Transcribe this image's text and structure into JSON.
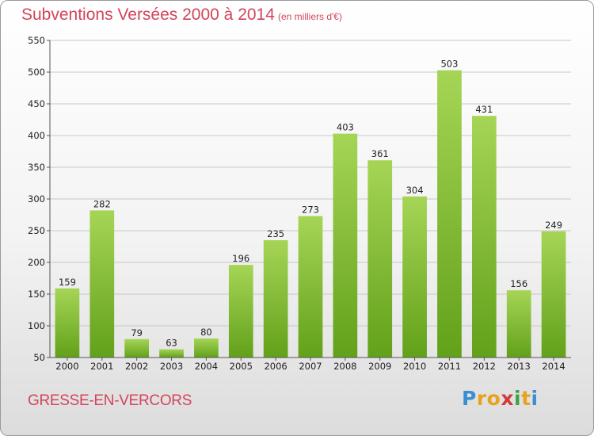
{
  "chart_data": {
    "type": "bar",
    "title": "Subventions Versées 2000 à 2014",
    "subtitle": "(en milliers d'€)",
    "categories": [
      "2000",
      "2001",
      "2002",
      "2003",
      "2004",
      "2005",
      "2006",
      "2007",
      "2008",
      "2009",
      "2010",
      "2011",
      "2012",
      "2013",
      "2014"
    ],
    "values": [
      159,
      282,
      79,
      63,
      80,
      196,
      235,
      273,
      403,
      361,
      304,
      503,
      431,
      156,
      249
    ],
    "ylim": [
      50,
      550
    ],
    "yticks": [
      50,
      100,
      150,
      200,
      250,
      300,
      350,
      400,
      450,
      500,
      550
    ],
    "xlabel": "",
    "ylabel": "",
    "grid": true,
    "bar_color": "#7cb82f"
  },
  "footer": {
    "commune": "GRESSE-EN-VERCORS",
    "logo_letters": [
      "P",
      "r",
      "o",
      "x",
      "i",
      "t",
      "i"
    ],
    "logo_colors": [
      "#3b8fd0",
      "#e8a21c",
      "#e8a21c",
      "#d33a3a",
      "#3aa24a",
      "#e8a21c",
      "#3b8fd0"
    ]
  }
}
